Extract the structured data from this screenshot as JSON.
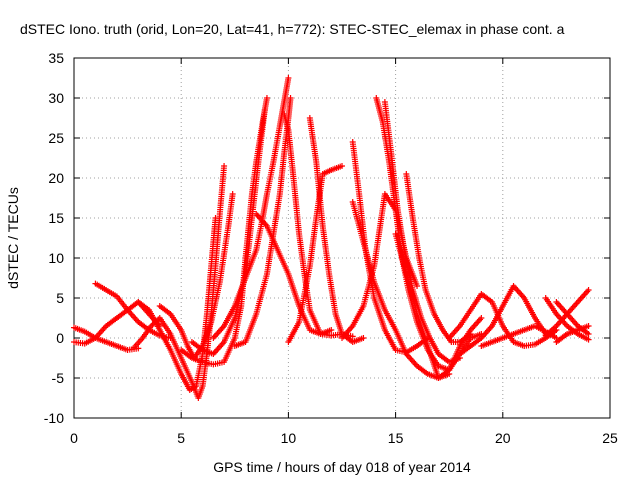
{
  "chart_data": {
    "type": "scatter",
    "title": "dSTEC Iono. truth (orid, Lon=20, Lat=41, h=772): STEC-STEC_elemax in phase cont. a",
    "xlabel": "GPS time / hours of day 018 of year 2014",
    "ylabel": "dSTEC  / TECUs",
    "xlim": [
      0,
      25
    ],
    "ylim": [
      -10,
      35
    ],
    "xticks": [
      "0",
      "5",
      "10",
      "15",
      "20",
      "25"
    ],
    "yticks": [
      "-10",
      "-5",
      "0",
      "5",
      "10",
      "15",
      "20",
      "25",
      "30",
      "35"
    ],
    "grid": true,
    "marker": "plus",
    "series_color": "#ff0000",
    "series": [
      {
        "x": [
          0.0,
          0.5,
          1.0,
          1.5,
          2.0,
          2.5,
          3.0,
          3.5,
          4.0
        ],
        "y": [
          -0.5,
          -0.7,
          0.0,
          1.5,
          2.5,
          3.5,
          4.5,
          3.0,
          1.5
        ]
      },
      {
        "x": [
          0.0,
          0.5,
          1.0,
          1.5,
          2.0,
          2.5,
          3.0
        ],
        "y": [
          1.3,
          0.8,
          0.0,
          -0.5,
          -1.0,
          -1.5,
          -1.3
        ]
      },
      {
        "x": [
          1.0,
          1.5,
          2.0,
          2.5,
          3.0,
          3.5,
          4.0,
          4.5
        ],
        "y": [
          6.8,
          6.0,
          5.2,
          3.5,
          2.0,
          1.0,
          0.3,
          0.0
        ]
      },
      {
        "x": [
          2.8,
          3.2,
          3.6,
          4.0,
          4.5,
          5.0,
          5.5,
          5.8,
          6.0,
          6.2,
          6.4,
          6.6,
          6.8,
          7.0
        ],
        "y": [
          -1.2,
          0.0,
          1.5,
          2.5,
          0.5,
          -2.5,
          -5.5,
          -7.5,
          -6.0,
          -2.0,
          3.0,
          9.0,
          15.5,
          21.5
        ]
      },
      {
        "x": [
          3.0,
          3.5,
          4.0,
          4.5,
          5.0,
          5.4,
          5.7,
          6.0,
          6.2,
          6.4,
          6.6
        ],
        "y": [
          4.5,
          3.5,
          1.0,
          -1.5,
          -4.5,
          -6.5,
          -6.0,
          -2.0,
          3.0,
          9.0,
          15.0
        ]
      },
      {
        "x": [
          4.0,
          4.5,
          5.0,
          5.3,
          5.6,
          6.0,
          6.4,
          6.8,
          7.2,
          7.4
        ],
        "y": [
          4.0,
          3.0,
          1.0,
          -1.0,
          -2.5,
          -1.0,
          2.0,
          7.0,
          14.0,
          18.0
        ]
      },
      {
        "x": [
          5.0,
          5.5,
          6.0,
          6.5,
          7.0,
          7.5,
          7.8,
          8.0,
          8.3,
          8.5,
          8.8,
          9.0
        ],
        "y": [
          -1.5,
          -2.5,
          -3.0,
          -3.3,
          -3.0,
          0.0,
          4.0,
          10.0,
          18.0,
          22.0,
          27.0,
          30.0
        ]
      },
      {
        "x": [
          5.5,
          6.0,
          6.5,
          7.0,
          7.5,
          8.0,
          8.3,
          8.6,
          8.9
        ],
        "y": [
          -0.5,
          -1.5,
          -2.0,
          -0.5,
          2.5,
          8.0,
          15.0,
          22.0,
          28.5
        ]
      },
      {
        "x": [
          6.5,
          7.0,
          7.5,
          8.0,
          8.5,
          8.8,
          9.0,
          9.3,
          9.6,
          9.8,
          10.0
        ],
        "y": [
          0.0,
          1.5,
          4.0,
          7.5,
          11.0,
          15.0,
          18.0,
          22.0,
          26.5,
          29.5,
          32.5
        ]
      },
      {
        "x": [
          7.5,
          8.0,
          8.5,
          9.0,
          9.3,
          9.6,
          9.8,
          10.0,
          10.1
        ],
        "y": [
          -1.0,
          -0.5,
          3.0,
          8.0,
          13.0,
          18.0,
          23.0,
          27.5,
          30.0
        ]
      },
      {
        "x": [
          8.5,
          9.0,
          9.5,
          10.0,
          10.5,
          11.0,
          11.5,
          12.0
        ],
        "y": [
          15.5,
          14.0,
          11.0,
          8.0,
          4.0,
          1.0,
          0.5,
          1.0
        ]
      },
      {
        "x": [
          9.8,
          10.0,
          10.2,
          10.5,
          10.8,
          11.0,
          11.5,
          12.0,
          12.5,
          13.0
        ],
        "y": [
          28.0,
          26.0,
          21.0,
          13.0,
          7.0,
          3.5,
          0.5,
          0.3,
          0.5,
          0.2
        ]
      },
      {
        "x": [
          10.0,
          10.5,
          11.0,
          11.3,
          11.6,
          12.0,
          12.5
        ],
        "y": [
          -0.5,
          2.0,
          9.0,
          15.0,
          20.5,
          21.0,
          21.5
        ]
      },
      {
        "x": [
          11.0,
          11.3,
          11.6,
          11.9,
          12.2,
          12.5,
          13.0,
          13.5
        ],
        "y": [
          27.5,
          22.0,
          14.0,
          8.0,
          3.0,
          0.5,
          -0.5,
          0.0
        ]
      },
      {
        "x": [
          12.5,
          13.0,
          13.5,
          14.0,
          14.5,
          15.0,
          15.5,
          16.0
        ],
        "y": [
          0.0,
          1.5,
          4.0,
          9.0,
          18.0,
          16.0,
          10.0,
          6.5
        ]
      },
      {
        "x": [
          13.0,
          13.3,
          13.6,
          14.0,
          14.5,
          15.0,
          15.5,
          16.0,
          16.5
        ],
        "y": [
          24.5,
          18.0,
          11.0,
          5.0,
          1.0,
          -1.5,
          -1.8,
          -1.0,
          0.0
        ]
      },
      {
        "x": [
          13.0,
          13.5,
          14.0,
          14.5,
          15.0,
          15.5,
          16.0,
          16.5,
          17.0,
          17.5
        ],
        "y": [
          17.0,
          12.0,
          7.0,
          3.5,
          1.0,
          -2.0,
          -3.5,
          -4.5,
          -5.0,
          -4.5
        ]
      },
      {
        "x": [
          14.1,
          14.4,
          14.7,
          15.0,
          15.3,
          15.6,
          16.0,
          16.5,
          17.0,
          17.5,
          18.0,
          18.5,
          19.0
        ],
        "y": [
          30.0,
          27.0,
          22.0,
          16.0,
          10.0,
          6.0,
          2.0,
          -1.5,
          -3.5,
          -4.0,
          -2.0,
          0.0,
          0.5
        ]
      },
      {
        "x": [
          14.5,
          14.8,
          15.1,
          15.4,
          15.8,
          16.2,
          16.6,
          17.0,
          17.5,
          18.0
        ],
        "y": [
          29.5,
          23.0,
          16.0,
          11.0,
          6.0,
          2.5,
          0.0,
          -2.0,
          -3.0,
          -2.5
        ]
      },
      {
        "x": [
          15.0,
          15.5,
          16.0,
          16.5,
          17.0,
          17.5,
          18.0,
          18.5,
          19.0
        ],
        "y": [
          13.0,
          8.0,
          3.0,
          -1.0,
          -5.0,
          -4.0,
          -1.0,
          1.0,
          2.5
        ]
      },
      {
        "x": [
          15.5,
          15.8,
          16.1,
          16.4,
          16.8,
          17.2,
          17.6,
          18.0,
          18.5
        ],
        "y": [
          20.5,
          15.0,
          10.0,
          6.0,
          3.0,
          1.0,
          -0.5,
          -0.5,
          0.5
        ]
      },
      {
        "x": [
          17.5,
          18.0,
          18.5,
          19.0,
          19.5,
          20.0,
          20.5,
          21.0,
          21.5,
          22.0,
          22.5
        ],
        "y": [
          0.0,
          1.5,
          3.5,
          5.5,
          4.5,
          1.5,
          -0.5,
          -1.0,
          -0.8,
          0.0,
          1.0
        ]
      },
      {
        "x": [
          18.0,
          18.5,
          19.0,
          19.5,
          20.0,
          20.5,
          21.0,
          21.5,
          22.0
        ],
        "y": [
          -2.0,
          -1.0,
          0.0,
          1.5,
          4.0,
          6.5,
          5.0,
          2.5,
          0.5
        ]
      },
      {
        "x": [
          19.0,
          19.5,
          20.0,
          20.5,
          21.0,
          21.5,
          22.0,
          22.5
        ],
        "y": [
          -1.0,
          -0.5,
          0.0,
          0.5,
          1.0,
          1.5,
          0.8,
          0.0
        ]
      },
      {
        "x": [
          22.0,
          22.5,
          23.0,
          23.5,
          24.0
        ],
        "y": [
          5.0,
          3.0,
          1.5,
          0.5,
          -0.2
        ]
      },
      {
        "x": [
          22.5,
          23.0,
          23.5,
          24.0
        ],
        "y": [
          4.5,
          3.0,
          1.5,
          0.5
        ]
      },
      {
        "x": [
          22.0,
          22.5,
          23.0,
          23.5,
          24.0
        ],
        "y": [
          0.3,
          1.5,
          3.0,
          4.5,
          6.0
        ]
      },
      {
        "x": [
          22.5,
          23.0,
          23.5,
          24.0
        ],
        "y": [
          -0.5,
          0.5,
          1.0,
          1.5
        ]
      }
    ]
  }
}
